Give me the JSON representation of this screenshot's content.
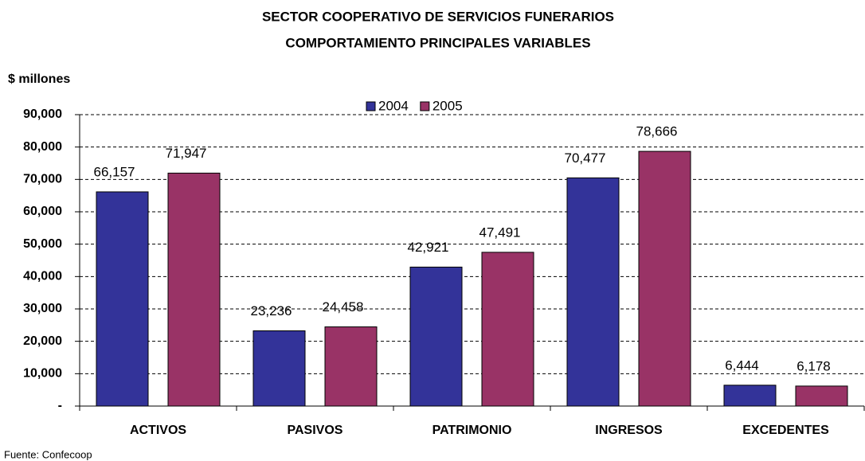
{
  "chart_data": {
    "type": "bar",
    "title": [
      "SECTOR COOPERATIVO DE SERVICIOS FUNERARIOS",
      "COMPORTAMIENTO PRINCIPALES VARIABLES"
    ],
    "ylabel": "$ millones",
    "source": "Fuente: Confecoop",
    "categories": [
      "ACTIVOS",
      "PASIVOS",
      "PATRIMONIO",
      "INGRESOS",
      "EXCEDENTES"
    ],
    "series": [
      {
        "name": "2004",
        "color": "#333399",
        "values": [
          66157,
          23236,
          42921,
          70477,
          6444
        ],
        "value_labels": [
          "66,157",
          "23,236",
          "42,921",
          "70,477",
          "6,444"
        ]
      },
      {
        "name": "2005",
        "color": "#993366",
        "values": [
          71947,
          24458,
          47491,
          78666,
          6178
        ],
        "value_labels": [
          "71,947",
          "24,458",
          "47,491",
          "78,666",
          "6,178"
        ]
      }
    ],
    "ylim": [
      0,
      90000
    ],
    "yticks": [
      {
        "value": 0,
        "label": "-"
      },
      {
        "value": 10000,
        "label": "10,000"
      },
      {
        "value": 20000,
        "label": "20,000"
      },
      {
        "value": 30000,
        "label": "30,000"
      },
      {
        "value": 40000,
        "label": "40,000"
      },
      {
        "value": 50000,
        "label": "50,000"
      },
      {
        "value": 60000,
        "label": "60,000"
      },
      {
        "value": 70000,
        "label": "70,000"
      },
      {
        "value": 80000,
        "label": "80,000"
      },
      {
        "value": 90000,
        "label": "90,000"
      }
    ],
    "grid": true,
    "legend": "top"
  }
}
